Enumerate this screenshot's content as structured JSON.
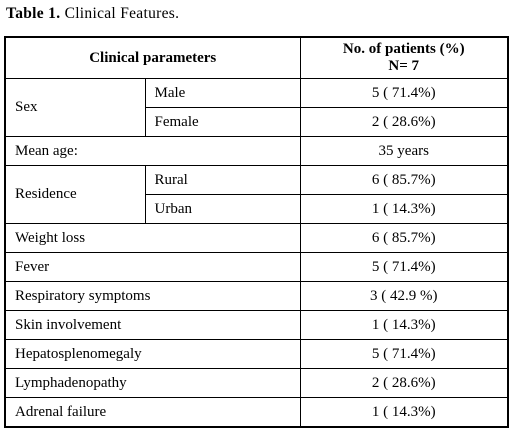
{
  "caption": {
    "label": "Table 1.",
    "text": "Clinical Features."
  },
  "header": {
    "parameter": "Clinical parameters",
    "value_lines": [
      "No. of patients (%)",
      "N= 7"
    ]
  },
  "rows": [
    {
      "label": "Sex",
      "items": [
        {
          "label": "Male",
          "value": "5 ( 71.4%)"
        },
        {
          "label": "Female",
          "value": "2 ( 28.6%)"
        }
      ]
    },
    {
      "label": "Mean age:",
      "value": "35 years"
    },
    {
      "label": "Residence",
      "items": [
        {
          "label": "Rural",
          "value": "6 ( 85.7%)"
        },
        {
          "label": "Urban",
          "value": "1 ( 14.3%)"
        }
      ]
    },
    {
      "label": "Weight loss",
      "value": "6 ( 85.7%)"
    },
    {
      "label": "Fever",
      "value": "5 ( 71.4%)"
    },
    {
      "label": "Respiratory symptoms",
      "value": "3 ( 42.9 %)"
    },
    {
      "label": "Skin involvement",
      "value": "1 ( 14.3%)"
    },
    {
      "label": "Hepatosplenomegaly",
      "value": "5 ( 71.4%)"
    },
    {
      "label": "Lymphadenopathy",
      "value": "2 ( 28.6%)"
    },
    {
      "label": "Adrenal failure",
      "value": "1 ( 14.3%)"
    }
  ]
}
